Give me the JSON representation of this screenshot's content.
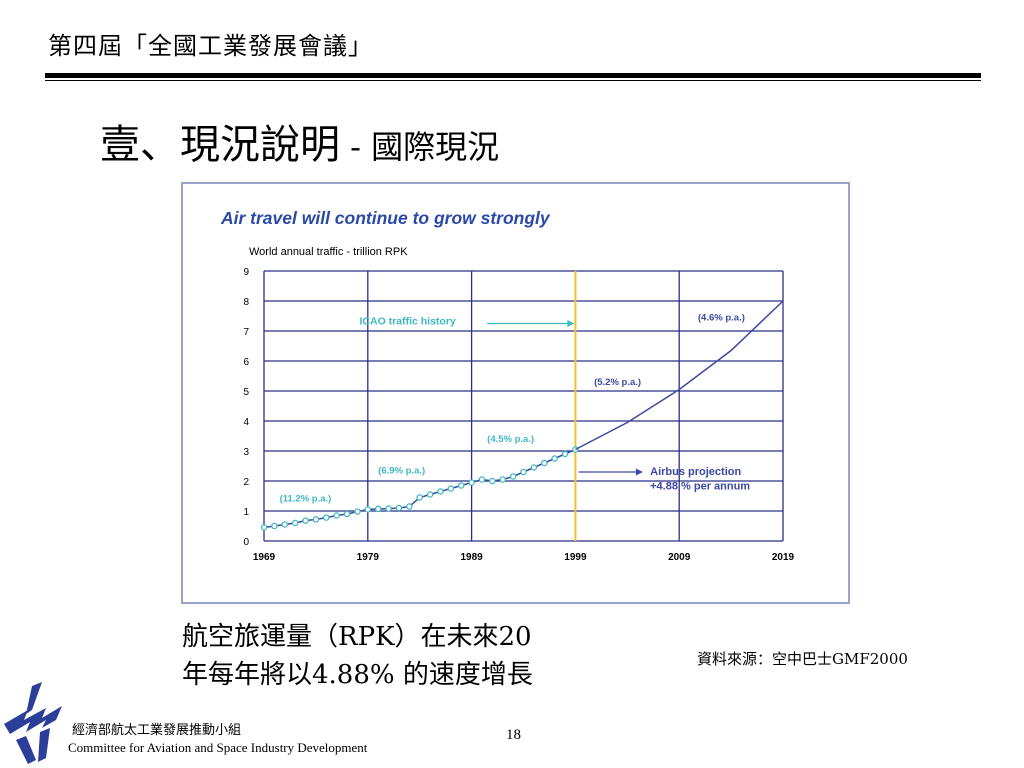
{
  "header": {
    "title": "第四屆「全國工業發展會議」"
  },
  "slide": {
    "title_main": "壹、現況說明",
    "title_sep": " - ",
    "title_sub": "國際現況"
  },
  "chart_data": {
    "type": "line",
    "title": "Air travel will continue to grow strongly",
    "ylabel": "World annual traffic - trillion RPK",
    "xlim": [
      1969,
      2019
    ],
    "ylim": [
      0,
      9
    ],
    "xticks": [
      "1969",
      "1979",
      "1989",
      "1999",
      "2009",
      "2019"
    ],
    "yticks": [
      "0",
      "1",
      "2",
      "3",
      "4",
      "5",
      "6",
      "7",
      "8",
      "9"
    ],
    "grid": true,
    "divider_x": 1999,
    "series": [
      {
        "name": "ICAO traffic history",
        "x": [
          1969,
          1970,
          1971,
          1972,
          1973,
          1974,
          1975,
          1976,
          1977,
          1978,
          1979,
          1980,
          1981,
          1982,
          1983,
          1984,
          1985,
          1986,
          1987,
          1988,
          1989,
          1990,
          1991,
          1992,
          1993,
          1994,
          1995,
          1996,
          1997,
          1998,
          1999
        ],
        "y": [
          0.45,
          0.5,
          0.55,
          0.6,
          0.68,
          0.72,
          0.78,
          0.85,
          0.9,
          0.98,
          1.05,
          1.07,
          1.08,
          1.1,
          1.15,
          1.45,
          1.55,
          1.65,
          1.75,
          1.85,
          1.95,
          2.05,
          2.0,
          2.05,
          2.15,
          2.3,
          2.45,
          2.6,
          2.75,
          2.9,
          3.05
        ]
      },
      {
        "name": "Airbus projection",
        "x": [
          1999,
          2004,
          2009,
          2014,
          2019
        ],
        "y": [
          3.05,
          3.95,
          5.05,
          6.35,
          8.0
        ]
      }
    ],
    "annotations": [
      "(11.2% p.a.)",
      "(6.9% p.a.)",
      "(4.5% p.a.)",
      "(5.2% p.a.)",
      "(4.6% p.a.)",
      "ICAO traffic history",
      "Airbus projection",
      "+4.88 % per annum"
    ]
  },
  "caption": {
    "line1": "航空旅運量（RPK）在未來20",
    "line2": "年每年將以4.88% 的速度增長"
  },
  "source": "資料來源：空中巴士GMF2000",
  "footer": {
    "org_zh": "經濟部航太工業發展推動小組",
    "org_en": "Committee for Aviation and Space Industry Development"
  },
  "page": {
    "number": "18"
  },
  "colors": {
    "title_blue": "#2b4aa8",
    "line": "#3b4aa0",
    "marker": "#3fb8c0",
    "annotation": "#3fb8c0",
    "divider": "#f2c230",
    "grid": "#2b2f8a",
    "logo": "#2b3f9a"
  }
}
